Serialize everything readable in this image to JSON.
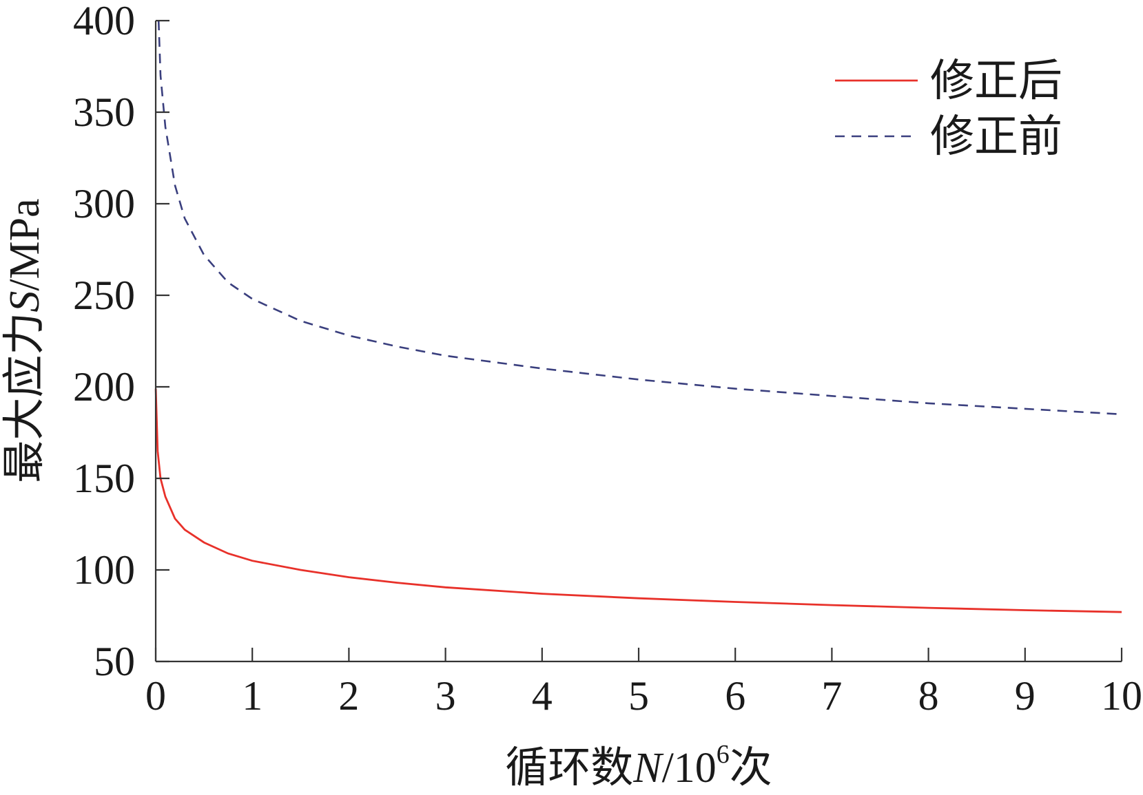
{
  "chart_data": {
    "type": "line",
    "title": "",
    "xlabel": {
      "prefix": "循环数",
      "variable": "N",
      "unit_base": "/10",
      "unit_exp": "6",
      "suffix": "次"
    },
    "ylabel": {
      "prefix": "最大应力",
      "variable": "S",
      "unit": "/MPa"
    },
    "xlim": [
      0,
      10
    ],
    "ylim": [
      50,
      400
    ],
    "xticks": [
      "0",
      "1",
      "2",
      "3",
      "4",
      "5",
      "6",
      "7",
      "8",
      "9",
      "10"
    ],
    "yticks": [
      "50",
      "100",
      "150",
      "200",
      "250",
      "300",
      "350",
      "400"
    ],
    "grid": false,
    "legend_position": "top-right",
    "series": [
      {
        "name": "修正后",
        "color": "#e8312a",
        "style": "solid",
        "x": [
          0.001,
          0.02,
          0.05,
          0.1,
          0.2,
          0.3,
          0.5,
          0.75,
          1,
          1.5,
          2,
          2.5,
          3,
          4,
          5,
          6,
          7,
          8,
          9,
          10
        ],
        "y": [
          199,
          165,
          150,
          140,
          128,
          122,
          115,
          109,
          105,
          100,
          96,
          93,
          90.5,
          87,
          84.5,
          82.5,
          80.8,
          79.3,
          78,
          77
        ]
      },
      {
        "name": "修正前",
        "color": "#3a3f7e",
        "style": "dashed",
        "x": [
          0.03,
          0.05,
          0.1,
          0.2,
          0.3,
          0.5,
          0.75,
          1,
          1.5,
          2,
          2.5,
          3,
          4,
          5,
          6,
          7,
          8,
          9,
          10
        ],
        "y": [
          400,
          370,
          342,
          310,
          292,
          272,
          257,
          248,
          236,
          228,
          222,
          217,
          210,
          204,
          199,
          195,
          191,
          188,
          185
        ]
      }
    ]
  }
}
